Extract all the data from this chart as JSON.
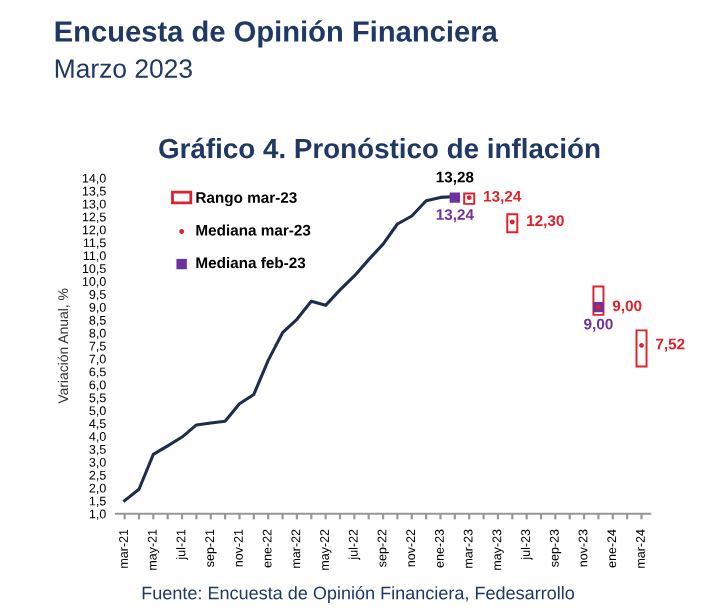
{
  "chart_data": {
    "type": "line",
    "title": "Encuesta de Opinión Financiera",
    "subtitle": "Marzo 2023",
    "ylabel": "Variación Anual, %",
    "annotations": [
      "Gráfico 4. Pronóstico de inflación",
      "Fuente: Encuesta de Opinión Financiera, Fedesarrollo"
    ],
    "categories": [
      "mar-21",
      null,
      "may-21",
      null,
      "jul-21",
      null,
      "sep-21",
      null,
      "nov-21",
      null,
      "ene-22",
      null,
      "mar-22",
      null,
      "may-22",
      null,
      "jul-22",
      null,
      "sep-22",
      null,
      "nov-22",
      null,
      "ene-23",
      null,
      "mar-23",
      null,
      "may-23",
      null,
      "jul-23",
      null,
      "sep-23",
      null,
      "nov-23",
      null,
      "ene-24",
      null,
      "mar-24"
    ],
    "ylim": [
      1,
      14
    ],
    "yticks": [
      {
        "value": 1,
        "label": "1,0"
      },
      {
        "value": 1.5,
        "label": "1,5"
      },
      {
        "value": 2,
        "label": "2,0"
      },
      {
        "value": 2.5,
        "label": "2,5"
      },
      {
        "value": 3,
        "label": "3,0"
      },
      {
        "value": 3.5,
        "label": "3,5"
      },
      {
        "value": 4,
        "label": "4,0"
      },
      {
        "value": 4.5,
        "label": "4,5"
      },
      {
        "value": 5,
        "label": "5,0"
      },
      {
        "value": 5.5,
        "label": "5,5"
      },
      {
        "value": 6,
        "label": "6,0"
      },
      {
        "value": 6.5,
        "label": "6,5"
      },
      {
        "value": 7,
        "label": "7,0"
      },
      {
        "value": 7.5,
        "label": "7,5"
      },
      {
        "value": 8,
        "label": "8,0"
      },
      {
        "value": 8.5,
        "label": "8,5"
      },
      {
        "value": 9,
        "label": "9,0"
      },
      {
        "value": 9.5,
        "label": "9,5"
      },
      {
        "value": 10,
        "label": "10,0"
      },
      {
        "value": 10.5,
        "label": "10,5"
      },
      {
        "value": 11,
        "label": "11,0"
      },
      {
        "value": 11.5,
        "label": "11,5"
      },
      {
        "value": 12,
        "label": "12,0"
      },
      {
        "value": 12.5,
        "label": "12,5"
      },
      {
        "value": 13,
        "label": "13,0"
      },
      {
        "value": 13.5,
        "label": "13,5"
      },
      {
        "value": 14,
        "label": "14,0"
      }
    ],
    "legend": "top left",
    "grid": false,
    "series": [
      {
        "color": "#1f2d4d",
        "values": [
          1.51,
          1.95,
          3.3,
          3.63,
          3.97,
          4.44,
          4.51,
          4.58,
          5.26,
          5.62,
          6.94,
          8.01,
          8.53,
          9.23,
          9.07,
          9.67,
          10.21,
          10.84,
          11.44,
          12.22,
          12.53,
          13.12,
          13.25,
          13.28,
          null,
          null,
          null,
          null,
          null,
          null,
          null,
          null,
          null,
          null,
          null,
          null,
          null
        ],
        "value_labels": [
          null,
          null,
          null,
          null,
          null,
          null,
          null,
          null,
          null,
          null,
          null,
          null,
          null,
          null,
          null,
          null,
          null,
          null,
          null,
          null,
          null,
          null,
          null,
          "13,28",
          null,
          null,
          null,
          null,
          null,
          null,
          null,
          null,
          null,
          null,
          null,
          null,
          null
        ]
      },
      {
        "type": "bar",
        "name": "Rango mar-23",
        "color": "#e0202a",
        "values": [
          null,
          null,
          null,
          null,
          null,
          null,
          null,
          null,
          null,
          null,
          null,
          null,
          null,
          null,
          null,
          null,
          null,
          null,
          null,
          null,
          null,
          null,
          null,
          null,
          0.4,
          null,
          null,
          0.7,
          null,
          null,
          null,
          null,
          null,
          1.1,
          null,
          null,
          1.4
        ],
        "base": [
          null,
          null,
          null,
          null,
          null,
          null,
          null,
          null,
          null,
          null,
          null,
          null,
          null,
          null,
          null,
          null,
          null,
          null,
          null,
          null,
          null,
          null,
          null,
          null,
          13.0,
          null,
          null,
          11.9,
          null,
          null,
          null,
          null,
          null,
          8.7,
          null,
          null,
          6.7
        ]
      },
      {
        "type": "scatter",
        "name": "Mediana mar-23",
        "color": "#e0202a",
        "marker": "circle",
        "values": [
          null,
          null,
          null,
          null,
          null,
          null,
          null,
          null,
          null,
          null,
          null,
          null,
          null,
          null,
          null,
          null,
          null,
          null,
          null,
          null,
          null,
          null,
          null,
          null,
          13.24,
          null,
          null,
          12.3,
          null,
          null,
          null,
          null,
          null,
          9.0,
          null,
          null,
          7.52
        ],
        "value_labels": [
          null,
          null,
          null,
          null,
          null,
          null,
          null,
          null,
          null,
          null,
          null,
          null,
          null,
          null,
          null,
          null,
          null,
          null,
          null,
          null,
          null,
          null,
          null,
          null,
          "13,24",
          null,
          null,
          "12,30",
          null,
          null,
          null,
          null,
          null,
          "9,00",
          null,
          null,
          "7,52"
        ]
      },
      {
        "type": "scatter",
        "name": "Mediana feb-23",
        "color": "#7030a0",
        "marker": "square",
        "values": [
          null,
          null,
          null,
          null,
          null,
          null,
          null,
          null,
          null,
          null,
          null,
          null,
          null,
          null,
          null,
          null,
          null,
          null,
          null,
          null,
          null,
          null,
          null,
          13.24,
          null,
          null,
          null,
          null,
          null,
          null,
          null,
          null,
          null,
          9.0,
          null,
          null,
          null
        ],
        "value_labels": [
          null,
          null,
          null,
          null,
          null,
          null,
          null,
          null,
          null,
          null,
          null,
          null,
          null,
          null,
          null,
          null,
          null,
          null,
          null,
          null,
          null,
          null,
          null,
          "13,24",
          null,
          null,
          null,
          null,
          null,
          null,
          null,
          null,
          null,
          "9,00",
          null,
          null,
          null
        ]
      }
    ]
  }
}
